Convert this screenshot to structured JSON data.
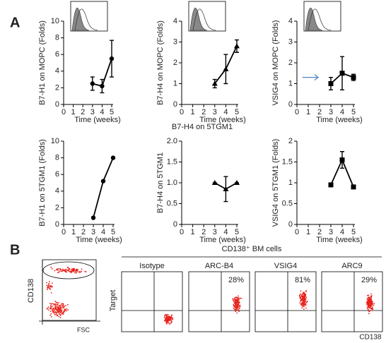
{
  "panel_labels": [
    "A",
    "B"
  ],
  "chart_data": [
    {
      "type": "line",
      "y_label": "B7-H1 on MOPC (Folds)",
      "x_label": "Time (weeks)",
      "marker": "circle",
      "color": "#000000",
      "x": [
        3,
        4,
        5
      ],
      "values": [
        2.5,
        2.2,
        5.5
      ],
      "errors": [
        0.8,
        0.8,
        2.2
      ],
      "xlim": [
        0,
        5
      ],
      "xticks": [
        0,
        1,
        2,
        3,
        4,
        5
      ],
      "ylim": [
        0,
        10
      ],
      "yticks": [
        0,
        2,
        4,
        6,
        8,
        10
      ],
      "inset": true
    },
    {
      "type": "line",
      "y_label": "B7-H4 on MOPC (Folds)",
      "x_label": "Time (weeks)",
      "marker": "triangle",
      "color": "#000000",
      "x": [
        3,
        4,
        5
      ],
      "values": [
        1.0,
        1.7,
        2.8
      ],
      "errors": [
        0.2,
        0.7,
        0.3
      ],
      "xlim": [
        0,
        5
      ],
      "xticks": [
        0,
        1,
        2,
        3,
        4,
        5
      ],
      "ylim": [
        0,
        4
      ],
      "yticks": [
        0,
        1,
        2,
        3,
        4
      ],
      "inset": true
    },
    {
      "type": "line",
      "y_label": "VSIG4 on MOPC (Folds)",
      "x_label": "Time (weeks)",
      "marker": "square",
      "color": "#000000",
      "x": [
        3,
        4,
        5
      ],
      "values": [
        1.0,
        1.5,
        1.3
      ],
      "errors": [
        0.3,
        0.8,
        0.15
      ],
      "xlim": [
        0,
        5
      ],
      "xticks": [
        0,
        1,
        2,
        3,
        4,
        5
      ],
      "ylim": [
        0,
        4
      ],
      "yticks": [
        0,
        1,
        2,
        3,
        4
      ],
      "inset": true
    },
    {
      "type": "line",
      "y_label": "B7-H1 on 5TGM1 (Folds)",
      "x_label": "Time (weeks)",
      "marker": "circle",
      "color": "#000000",
      "x": [
        3,
        4,
        5
      ],
      "values": [
        0.8,
        5.2,
        8.0
      ],
      "xlim": [
        0,
        5
      ],
      "xticks": [
        0,
        1,
        2,
        3,
        4,
        5
      ],
      "ylim": [
        0,
        10
      ],
      "yticks": [
        0,
        2,
        4,
        6,
        8,
        10
      ]
    },
    {
      "type": "line",
      "title": "B7-H4  on 5TGM1",
      "y_label": "B7-H4 on  5TGM1",
      "x_label": "Time (weeks)",
      "marker": "triangle",
      "color": "#000000",
      "x": [
        3,
        4,
        5
      ],
      "values": [
        1.0,
        0.85,
        1.0
      ],
      "errors": [
        0,
        0.3,
        0
      ],
      "xlim": [
        0,
        5
      ],
      "xticks": [
        0,
        1,
        2,
        3,
        4,
        5
      ],
      "ylim": [
        0,
        2
      ],
      "yticks": [
        0,
        0.5,
        {
          "value": 1,
          "label": "1.0"
        },
        1.5,
        {
          "value": 2,
          "label": "2.0"
        }
      ]
    },
    {
      "type": "line",
      "y_label": "VSIG4 on  5TGM1 (Folds)",
      "x_label": "Time (weeks)",
      "marker": "square",
      "color": "#000000",
      "x": [
        3,
        4,
        5
      ],
      "values": [
        0.95,
        1.55,
        0.9
      ],
      "errors": [
        0,
        0.2,
        0
      ],
      "xlim": [
        0,
        5
      ],
      "xticks": [
        0,
        1,
        2,
        3,
        4,
        5
      ],
      "ylim": [
        0,
        2
      ],
      "yticks": [
        0,
        0.5,
        1,
        1.5,
        2
      ]
    }
  ],
  "flow": {
    "gate_plot": {
      "y_label": "CD138",
      "x_label": "FSC"
    },
    "group_label": "CD138⁺ BM cells",
    "y_label": "Target",
    "x_label": "CD138",
    "panels": [
      {
        "title": "Isotype"
      },
      {
        "title": "ARC-B4",
        "percent": "28%"
      },
      {
        "title": "VSIG4",
        "percent": "81%"
      },
      {
        "title": "ARC9",
        "percent": "29%"
      }
    ]
  }
}
